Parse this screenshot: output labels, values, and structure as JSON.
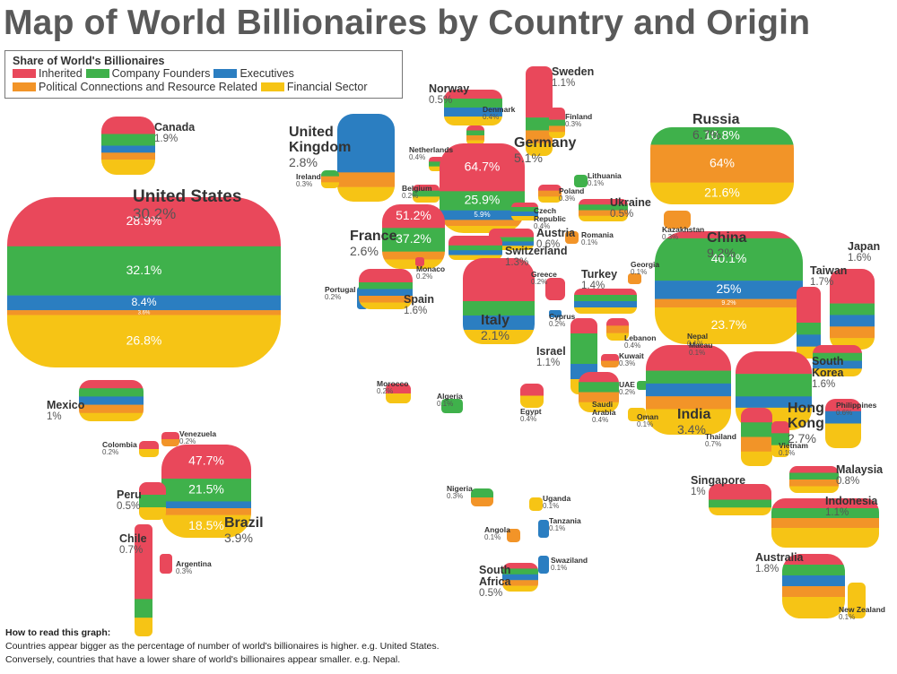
{
  "header": {
    "title": "Map of World Billionaires by Country and Origin"
  },
  "legend": {
    "title": "Share of World's Billionaires",
    "items": [
      {
        "label": "Inherited",
        "color": "#e9485b"
      },
      {
        "label": "Company Founders",
        "color": "#3fb14b"
      },
      {
        "label": "Executives",
        "color": "#2b7ec1"
      },
      {
        "label": "Political Connections and Resource Related",
        "color": "#f29428"
      },
      {
        "label": "Financial Sector",
        "color": "#f6c415"
      }
    ]
  },
  "countries": [
    {
      "name": "United States",
      "share": "30.2%",
      "breakdown": [
        "28.9%",
        "32.1%",
        "8.4%",
        "3.6%",
        "26.8%"
      ]
    },
    {
      "name": "Canada",
      "share": "1.9%"
    },
    {
      "name": "United Kingdom",
      "share": "2.8%"
    },
    {
      "name": "Ireland",
      "share": "0.3%"
    },
    {
      "name": "Netherlands",
      "share": "0.4%"
    },
    {
      "name": "Denmark",
      "share": "0.4%"
    },
    {
      "name": "Norway",
      "share": "0.5%"
    },
    {
      "name": "Sweden",
      "share": "1.1%"
    },
    {
      "name": "Finland",
      "share": "0.3%"
    },
    {
      "name": "Germany",
      "share": "5.1%",
      "breakdown": [
        "64.7%",
        "25.9%",
        "5.9%"
      ]
    },
    {
      "name": "Belgium",
      "share": "0.2%"
    },
    {
      "name": "Lithuania",
      "share": "0.1%"
    },
    {
      "name": "Poland",
      "share": "0.3%"
    },
    {
      "name": "Ukraine",
      "share": "0.5%"
    },
    {
      "name": "Czech Republic",
      "share": "0.4%"
    },
    {
      "name": "France",
      "share": "2.6%",
      "breakdown": [
        "51.2%",
        "37.2%"
      ]
    },
    {
      "name": "Austria",
      "share": "0.6%"
    },
    {
      "name": "Romania",
      "share": "0.1%"
    },
    {
      "name": "Switzerland",
      "share": "1.3%"
    },
    {
      "name": "Kazakhstan",
      "share": "0.3%"
    },
    {
      "name": "Russia",
      "share": "6.7%",
      "breakdown": [
        "10.8%",
        "64%",
        "21.6%"
      ]
    },
    {
      "name": "China",
      "share": "9.2%",
      "breakdown": [
        "40.1%",
        "25%",
        "9.2%",
        "23.7%"
      ]
    },
    {
      "name": "Japan",
      "share": "1.6%"
    },
    {
      "name": "Monaco",
      "share": "0.2%"
    },
    {
      "name": "Portugal",
      "share": "0.2%"
    },
    {
      "name": "Spain",
      "share": "1.6%"
    },
    {
      "name": "Greece",
      "share": "0.2%"
    },
    {
      "name": "Turkey",
      "share": "1.4%"
    },
    {
      "name": "Georgia",
      "share": "0.1%"
    },
    {
      "name": "Taiwan",
      "share": "1.7%"
    },
    {
      "name": "Italy",
      "share": "2.1%"
    },
    {
      "name": "Cyprus",
      "share": "0.2%"
    },
    {
      "name": "Lebanon",
      "share": "0.4%"
    },
    {
      "name": "Nepal",
      "share": "0.1%"
    },
    {
      "name": "Macau",
      "share": "0.1%"
    },
    {
      "name": "Israel",
      "share": "1.1%"
    },
    {
      "name": "Kuwait",
      "share": "0.3%"
    },
    {
      "name": "UAE",
      "share": "0.2%"
    },
    {
      "name": "South Korea",
      "share": "1.6%"
    },
    {
      "name": "Saudi Arabia",
      "share": "0.4%"
    },
    {
      "name": "Oman",
      "share": "0.1%"
    },
    {
      "name": "India",
      "share": "3.4%"
    },
    {
      "name": "Hong Kong",
      "share": "2.7%"
    },
    {
      "name": "Philippines",
      "share": "0.6%"
    },
    {
      "name": "Thailand",
      "share": "0.7%"
    },
    {
      "name": "Vietnam",
      "share": "0.1%"
    },
    {
      "name": "Morocco",
      "share": "0.2%"
    },
    {
      "name": "Algeria",
      "share": "0.1%"
    },
    {
      "name": "Egypt",
      "share": "0.4%"
    },
    {
      "name": "Mexico",
      "share": "1%"
    },
    {
      "name": "Venezuela",
      "share": "0.2%"
    },
    {
      "name": "Colombia",
      "share": "0.2%"
    },
    {
      "name": "Brazil",
      "share": "3.9%",
      "breakdown": [
        "47.7%",
        "21.5%",
        "18.5%"
      ]
    },
    {
      "name": "Peru",
      "share": "0.5%"
    },
    {
      "name": "Chile",
      "share": "0.7%"
    },
    {
      "name": "Argentina",
      "share": "0.3%"
    },
    {
      "name": "Singapore",
      "share": "1%"
    },
    {
      "name": "Malaysia",
      "share": "0.8%"
    },
    {
      "name": "Indonesia",
      "share": "1.1%"
    },
    {
      "name": "Nigeria",
      "share": "0.3%"
    },
    {
      "name": "Uganda",
      "share": "0.1%"
    },
    {
      "name": "Angola",
      "share": "0.1%"
    },
    {
      "name": "Tanzania",
      "share": "0.1%"
    },
    {
      "name": "Swaziland",
      "share": "0.1%"
    },
    {
      "name": "South Africa",
      "share": "0.5%"
    },
    {
      "name": "Australia",
      "share": "1.8%"
    },
    {
      "name": "New Zealand",
      "share": "0.1%"
    }
  ],
  "footnote": {
    "title": "How to read this graph:",
    "lines": [
      "Countries appear bigger as the percentage of number of world's billionaires is higher. e.g. United States.",
      "Conversely, countries that have a lower share of world's billionaires appear smaller. e.g. Nepal."
    ]
  }
}
